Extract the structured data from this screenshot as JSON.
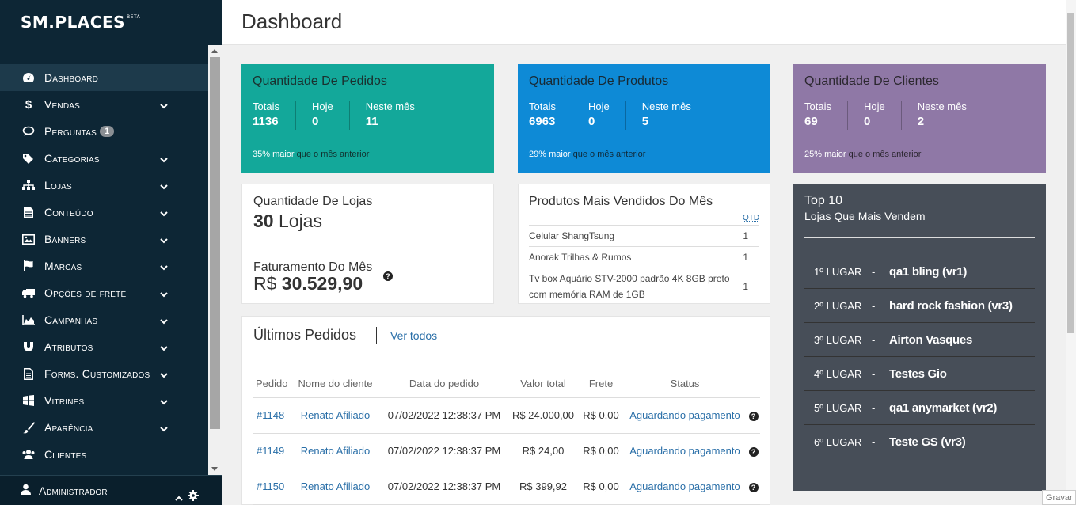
{
  "brand": {
    "logo": "SM.PLACES",
    "beta": "BETA"
  },
  "header": {
    "title": "Dashboard"
  },
  "sidebar": {
    "items": [
      {
        "label": "Dashboard",
        "icon": "dashboard-icon",
        "active": true,
        "chevron": false
      },
      {
        "label": "Vendas",
        "icon": "dollar-icon",
        "chevron": true
      },
      {
        "label": "Perguntas",
        "icon": "comments-icon",
        "chevron": false,
        "badge": "1"
      },
      {
        "label": "Categorias",
        "icon": "tags-icon",
        "chevron": true
      },
      {
        "label": "Lojas",
        "icon": "sitemap-icon",
        "chevron": true
      },
      {
        "label": "Conteúdo",
        "icon": "file-icon",
        "chevron": true
      },
      {
        "label": "Banners",
        "icon": "image-icon",
        "chevron": true
      },
      {
        "label": "Marcas",
        "icon": "flag-icon",
        "chevron": true
      },
      {
        "label": "Opções de frete",
        "icon": "truck-icon",
        "chevron": true
      },
      {
        "label": "Campanhas",
        "icon": "area-chart-icon",
        "chevron": true
      },
      {
        "label": "Atributos",
        "icon": "magnet-icon",
        "chevron": true
      },
      {
        "label": "Forms. Customizados",
        "icon": "file-text-icon",
        "chevron": true
      },
      {
        "label": "Vitrines",
        "icon": "windows-icon",
        "chevron": true
      },
      {
        "label": "Aparência",
        "icon": "brush-icon",
        "chevron": true
      },
      {
        "label": "Clientes",
        "icon": "users-icon",
        "chevron": false
      }
    ],
    "user": {
      "label": "Administrador"
    }
  },
  "stats": {
    "pedidos": {
      "title": "Quantidade De Pedidos",
      "totais_label": "Totais",
      "totais": "1136",
      "hoje_label": "Hoje",
      "hoje": "0",
      "mes_label": "Neste mês",
      "mes": "11",
      "foot_strong": "35% maior",
      "foot_rest": "que o mês anterior"
    },
    "produtos": {
      "title": "Quantidade De Produtos",
      "totais_label": "Totais",
      "totais": "6963",
      "hoje_label": "Hoje",
      "hoje": "0",
      "mes_label": "Neste mês",
      "mes": "5",
      "foot_strong": "29% maior",
      "foot_rest": "que o mês anterior"
    },
    "clientes": {
      "title": "Quantidade De Clientes",
      "totais_label": "Totais",
      "totais": "69",
      "hoje_label": "Hoje",
      "hoje": "0",
      "mes_label": "Neste mês",
      "mes": "2",
      "foot_strong": "25% maior",
      "foot_rest": "que o mês anterior"
    }
  },
  "lojas": {
    "title": "Quantidade De Lojas",
    "count": "30",
    "count_unit": "Lojas",
    "fat_title": "Faturamento Do Mês",
    "currency": "R$",
    "fat_value": "30.529,90"
  },
  "produtos_mais_vendidos": {
    "title": "Produtos Mais Vendidos Do Mês",
    "qtd_label": "QTD",
    "rows": [
      {
        "name": "Celular ShangTsung",
        "qtd": "1"
      },
      {
        "name": "Anorak Trilhas & Rumos",
        "qtd": "1"
      },
      {
        "name": "Tv box Aquário STV-2000 padrão 4K 8GB preto com memória RAM de 1GB",
        "qtd": "1"
      }
    ]
  },
  "top10": {
    "title": "Top 10",
    "subtitle": "Lojas Que Mais Vendem",
    "dash": "-",
    "rows": [
      {
        "pos": "1º LUGAR",
        "name": "qa1 bling (vr1)"
      },
      {
        "pos": "2º LUGAR",
        "name": "hard rock fashion (vr3)"
      },
      {
        "pos": "3º LUGAR",
        "name": "Airton Vasques"
      },
      {
        "pos": "4º LUGAR",
        "name": "Testes Gio"
      },
      {
        "pos": "5º LUGAR",
        "name": "qa1 anymarket (vr2)"
      },
      {
        "pos": "6º LUGAR",
        "name": "Teste GS (vr3)"
      }
    ]
  },
  "pedidos": {
    "title": "Últimos Pedidos",
    "ver_todos": "Ver todos",
    "columns": [
      "Pedido",
      "Nome do cliente",
      "Data do pedido",
      "Valor total",
      "Frete",
      "Status"
    ],
    "rows": [
      {
        "id": "#1148",
        "cliente": "Renato Afiliado",
        "data": "07/02/2022 12:38:37 PM",
        "valor": "R$ 24.000,00",
        "frete": "R$ 0,00",
        "status": "Aguardando pagamento"
      },
      {
        "id": "#1149",
        "cliente": "Renato Afiliado",
        "data": "07/02/2022 12:38:37 PM",
        "valor": "R$ 24,00",
        "frete": "R$ 0,00",
        "status": "Aguardando pagamento"
      },
      {
        "id": "#1150",
        "cliente": "Renato Afiliado",
        "data": "07/02/2022 12:38:37 PM",
        "valor": "R$ 399,92",
        "frete": "R$ 0,00",
        "status": "Aguardando pagamento"
      }
    ]
  },
  "overlay": {
    "gravar": "Gravar"
  }
}
